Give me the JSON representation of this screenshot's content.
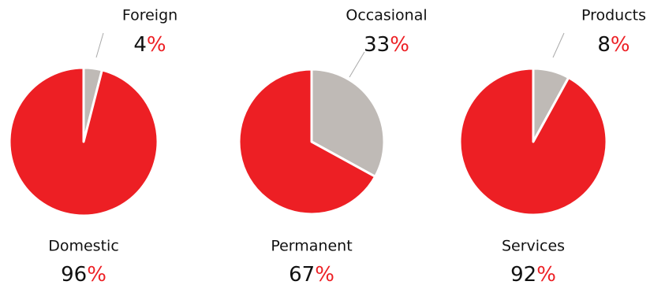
{
  "chart_data": [
    {
      "type": "pie",
      "categories": [
        "Domestic",
        "Foreign"
      ],
      "values": [
        96,
        4
      ],
      "colors": [
        "#ed1f24",
        "#bfbab6"
      ],
      "unit": "%"
    },
    {
      "type": "pie",
      "categories": [
        "Permanent",
        "Occasional"
      ],
      "values": [
        67,
        33
      ],
      "colors": [
        "#ed1f24",
        "#bfbab6"
      ],
      "unit": "%"
    },
    {
      "type": "pie",
      "categories": [
        "Services",
        "Products"
      ],
      "values": [
        92,
        8
      ],
      "colors": [
        "#ed1f24",
        "#bfbab6"
      ],
      "unit": "%"
    }
  ]
}
